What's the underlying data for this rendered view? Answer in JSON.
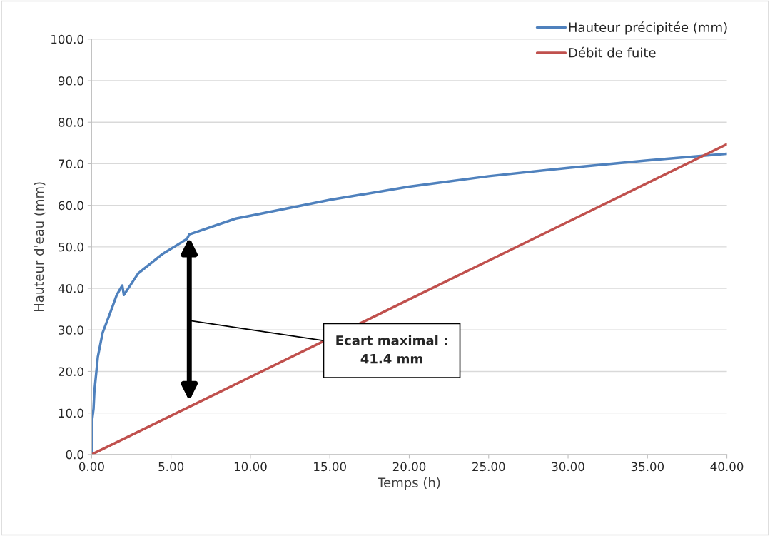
{
  "chart_data": {
    "type": "line",
    "xlabel": "Temps (h)",
    "ylabel": "Hauteur d'eau (mm)",
    "series": [
      {
        "name": "Hauteur précipitée (mm)",
        "color": "#4f81bd",
        "x": [
          0,
          0.02,
          0.12,
          0.17,
          0.39,
          0.69,
          1.14,
          1.58,
          1.93,
          2.03,
          2.93,
          4.43,
          6.0,
          6.15,
          9.07,
          10,
          15,
          20,
          25,
          30,
          35,
          40
        ],
        "values": [
          0,
          8,
          11,
          15,
          23.5,
          29.3,
          33.8,
          38.4,
          40.7,
          38.4,
          43.6,
          48.2,
          51.9,
          53.0,
          56.8,
          57.5,
          61.3,
          64.5,
          67,
          69,
          70.8,
          72.4
        ]
      },
      {
        "name": "Débit de fuite",
        "color": "#c0504d",
        "x": [
          0,
          40
        ],
        "values": [
          0,
          74.7
        ]
      }
    ],
    "annotations": [
      "Ecart maximal :\n41.4 mm"
    ],
    "xlim": [
      0,
      40
    ],
    "xticks": [
      {
        "value": 0,
        "label": "0.00"
      },
      {
        "value": 5,
        "label": "5.00"
      },
      {
        "value": 10,
        "label": "10.00"
      },
      {
        "value": 15,
        "label": "15.00"
      },
      {
        "value": 20,
        "label": "20.00"
      },
      {
        "value": 25,
        "label": "25.00"
      },
      {
        "value": 30,
        "label": "30.00"
      },
      {
        "value": 35,
        "label": "35.00"
      },
      {
        "value": 40,
        "label": "40.00"
      }
    ],
    "ylim": [
      0,
      100
    ],
    "yticks": [
      {
        "value": 0,
        "label": "0.0"
      },
      {
        "value": 10,
        "label": "10.0"
      },
      {
        "value": 20,
        "label": "20.0"
      },
      {
        "value": 30,
        "label": "30.0"
      },
      {
        "value": 40,
        "label": "40.0"
      },
      {
        "value": 50,
        "label": "50.0"
      },
      {
        "value": 60,
        "label": "60.0"
      },
      {
        "value": 70,
        "label": "70.0"
      },
      {
        "value": 80,
        "label": "80.0"
      },
      {
        "value": 90,
        "label": "90.0"
      },
      {
        "value": 100,
        "label": "100.0"
      }
    ],
    "grid": "y",
    "legend": "top right",
    "marker": "none",
    "line_style": "solid"
  }
}
